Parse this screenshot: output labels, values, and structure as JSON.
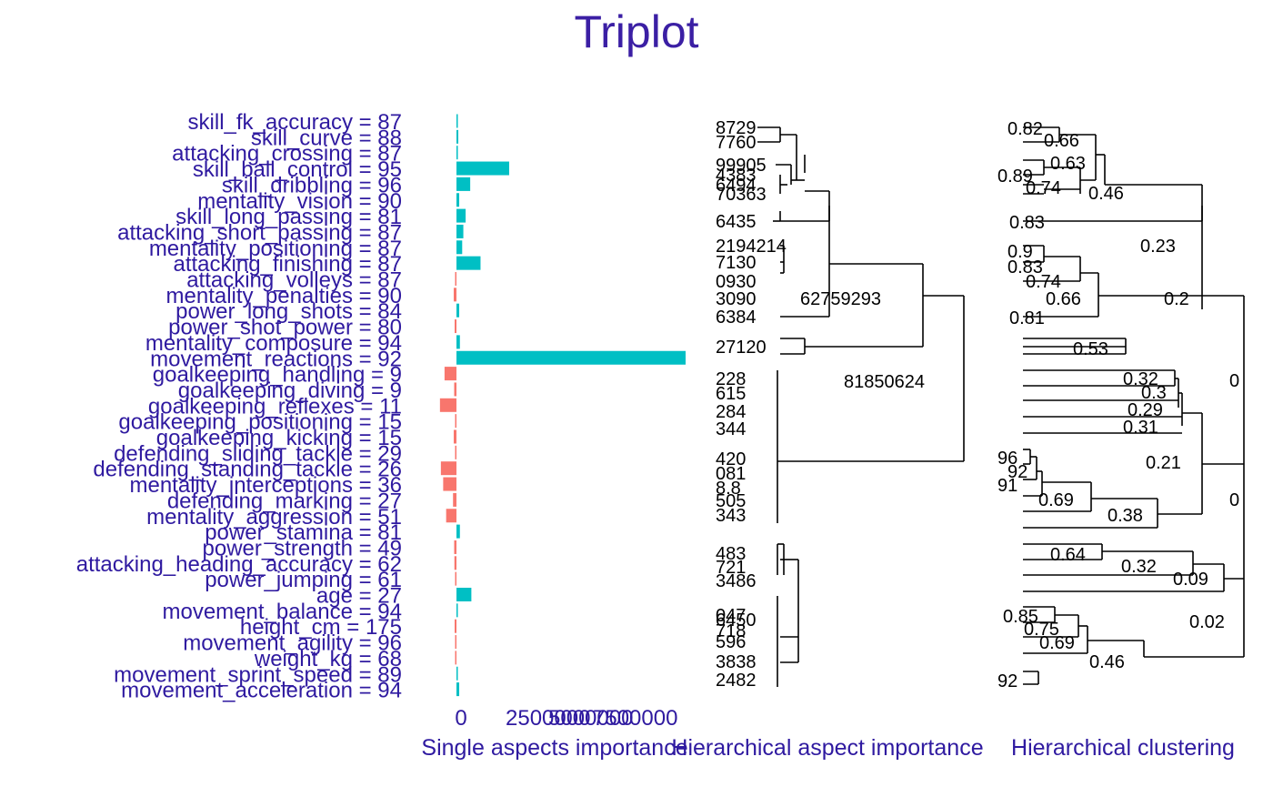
{
  "chart_data": {
    "title": "Triplot",
    "colors": {
      "positive": "#00bfc4",
      "negative": "#f8766d",
      "text": "#2f1aa0"
    },
    "panel1": {
      "type": "bar",
      "xlabel": "Single aspects importance",
      "xlim": [
        -75000,
        1000000
      ],
      "xticks": [
        "0",
        "2500000",
        "5000000",
        "7500000"
      ],
      "categories": [
        "skill_fk_accuracy = 87",
        "skill_curve = 88",
        "attacking_crossing = 87",
        "skill_ball_control = 95",
        "skill_dribbling = 96",
        "mentality_vision = 90",
        "skill_long_passing = 81",
        "attacking_short_passing = 87",
        "mentality_positioning = 87",
        "attacking_finishing = 87",
        "attacking_volleys = 87",
        "mentality_penalties = 90",
        "power_long_shots = 84",
        "power_shot_power = 80",
        "mentality_composure = 94",
        "movement_reactions = 92",
        "goalkeeping_handling = 9",
        "goalkeeping_diving = 9",
        "goalkeeping_reflexes = 11",
        "goalkeeping_positioning = 15",
        "goalkeeping_kicking = 15",
        "defending_sliding_tackle = 29",
        "defending_standing_tackle = 26",
        "mentality_interceptions = 36",
        "defending_marking = 27",
        "mentality_aggression = 51",
        "power_stamina = 81",
        "power_strength = 49",
        "attacking_heading_accuracy = 62",
        "power_jumping = 61",
        "age = 27",
        "movement_balance = 94",
        "height_cm = 175",
        "movement_agility = 96",
        "weight_kg = 68",
        "movement_sprint_speed = 89",
        "movement_acceleration = 94"
      ],
      "values": [
        5000,
        8000,
        6000,
        230000,
        60000,
        12000,
        40000,
        30000,
        25000,
        105000,
        -3000,
        -12000,
        12000,
        -8000,
        15000,
        1000000,
        -52000,
        -10000,
        -72000,
        -5000,
        -12000,
        -6000,
        -68000,
        -58000,
        -15000,
        -45000,
        15000,
        -10000,
        -9000,
        -4000,
        65000,
        2000,
        -8000,
        -4000,
        -4000,
        5000,
        12000
      ]
    },
    "panel2": {
      "type": "dendrogram",
      "xlabel": "Hierarchical aspect importance",
      "leaf_labels": [
        "8729",
        "7760",
        "99905",
        "4383",
        "6494",
        "70363",
        "6435",
        "2194214",
        "7130",
        "0930",
        "3090",
        "6384",
        "27120",
        "228",
        "615",
        "284",
        "344",
        "420",
        "081",
        "8.8",
        "505",
        "343",
        "483",
        "721",
        "3486",
        "047",
        "6450",
        "718",
        "596",
        "3838",
        "2482"
      ],
      "node_labels": [
        "62759293",
        "81850624"
      ]
    },
    "panel3": {
      "type": "dendrogram",
      "xlabel": "Hierarchical clustering",
      "node_labels": [
        "0.82",
        "0.66",
        "0.63",
        "0.89",
        "0.74",
        "0.46",
        "0.83",
        "0.23",
        "0.9",
        "0.83",
        "0.74",
        "0.66",
        "0.2",
        "0.81",
        "0.53",
        "0.32",
        "0.3",
        "0.29",
        "0.31",
        "0",
        "96",
        "92",
        "91",
        "0.69",
        "0.21",
        "0.38",
        "0",
        "0.64",
        "0.32",
        "0.09",
        "0.85",
        "0.75",
        "0.69",
        "0.02",
        "0.46",
        "92"
      ]
    }
  }
}
